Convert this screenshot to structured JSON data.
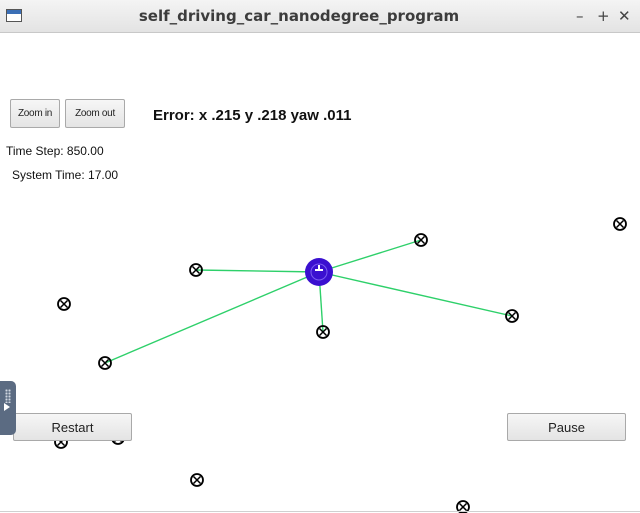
{
  "window": {
    "title": "self_driving_car_nanodegree_program",
    "controls": {
      "minimize": "–",
      "maximize": "+",
      "close": "✕"
    }
  },
  "toolbar": {
    "zoom_in": "Zoom in",
    "zoom_out": "Zoom out"
  },
  "status": {
    "error_text": "Error: x .215 y .218 yaw .011",
    "time_step": "Time Step: 850.00",
    "system_time": "System Time: 17.00"
  },
  "buttons": {
    "restart": "Restart",
    "pause": "Pause"
  },
  "colors": {
    "car": "#3a10d0",
    "car_heading": "#ffffff",
    "observation_line": "#2ed06a",
    "landmark": "#000000"
  },
  "icons": {
    "landmark": "landmark-marker-icon",
    "vehicle": "vehicle-icon",
    "side_panel": "side-panel-handle-icon"
  }
}
